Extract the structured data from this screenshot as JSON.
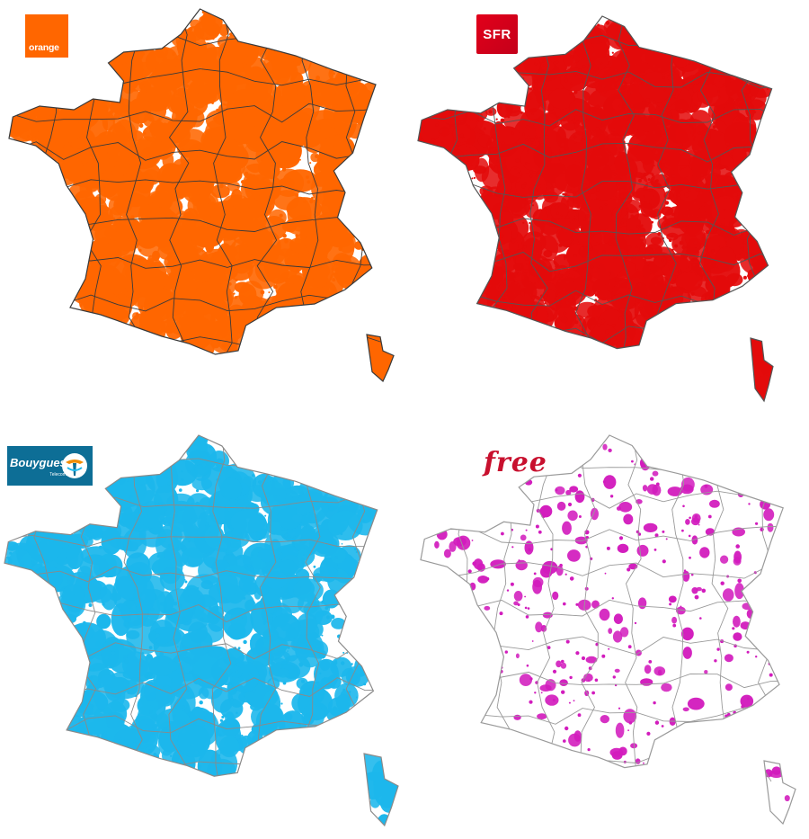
{
  "operators": [
    {
      "id": "orange",
      "logo_text": "orange",
      "coverage_color": "#ff6600",
      "border_color": "#3a3a3a",
      "density": 0.66,
      "seed": 7,
      "logo_icon": "orange-logo"
    },
    {
      "id": "sfr",
      "logo_text": "SFR",
      "coverage_color": "#e30b0b",
      "border_color": "#555555",
      "density": 0.74,
      "seed": 19,
      "logo_icon": "sfr-logo"
    },
    {
      "id": "bouygues",
      "logo_text": "Bouygues",
      "logo_subtext": "Telecom",
      "coverage_color": "#1cb7ec",
      "border_color": "#8a8a8a",
      "density": 0.43,
      "seed": 31,
      "logo_icon": "bouygues-telecom-logo"
    },
    {
      "id": "free",
      "logo_text": "free",
      "coverage_color": "#d21cbd",
      "border_color": "#9a9a9a",
      "density": 0.09,
      "seed": 53,
      "logo_icon": "free-logo"
    }
  ]
}
